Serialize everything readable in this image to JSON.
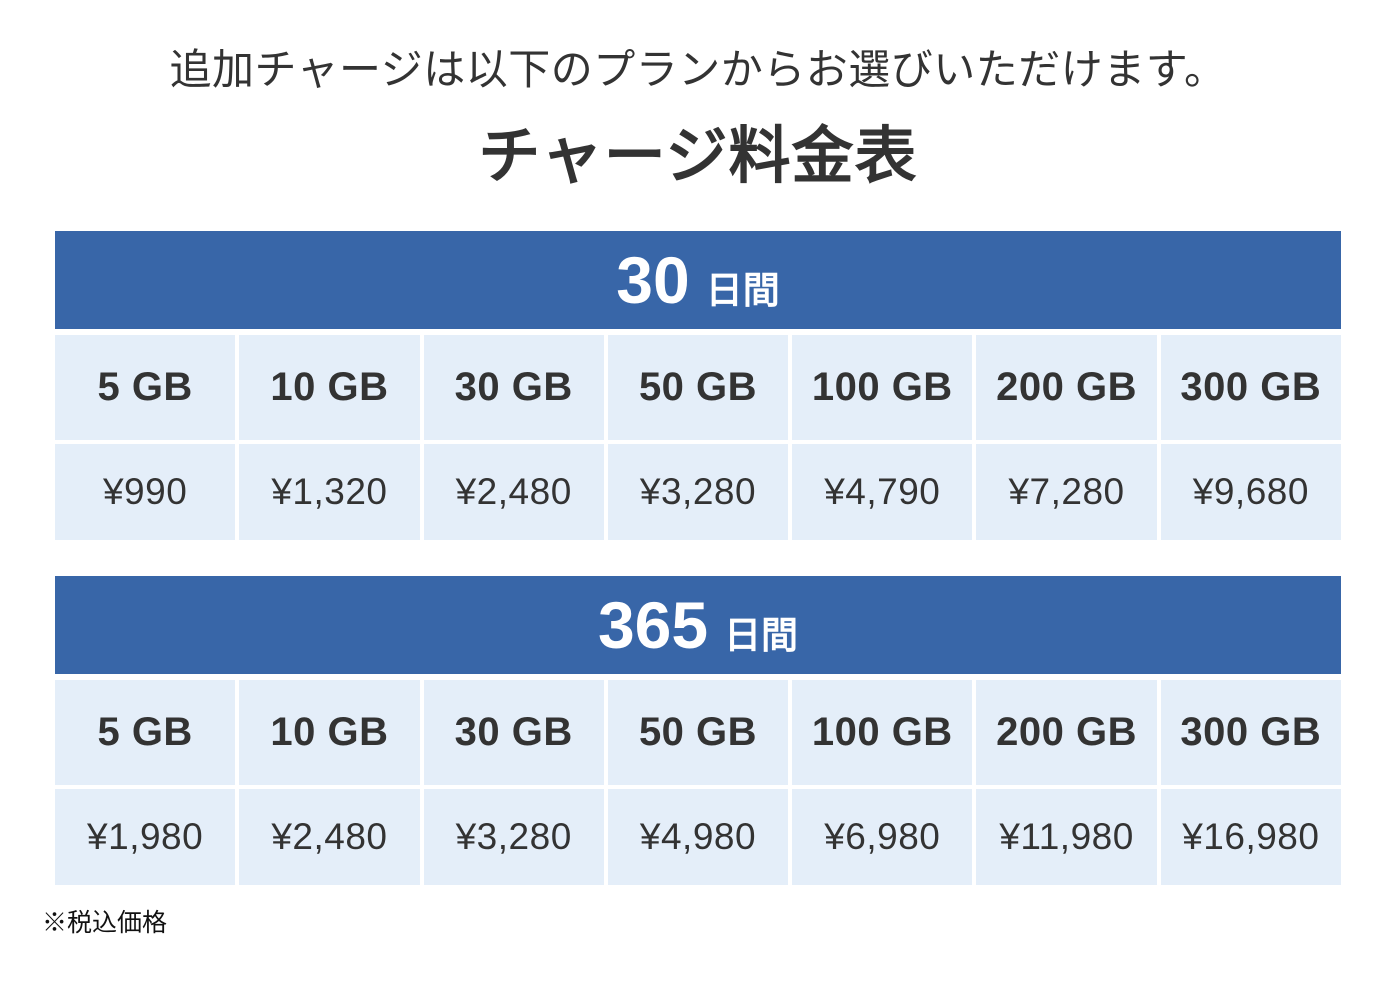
{
  "page": {
    "subtitle": "追加チャージは以下のプランからお選びいただけます。",
    "title": "チャージ料金表",
    "footnote": "※税込価格"
  },
  "colors": {
    "header_blue": "#3866A8",
    "cell_blue": "#E4EEF9",
    "text_dark": "#333333",
    "header_text": "#FFFFFF"
  },
  "chart_data": {
    "type": "table",
    "title": "チャージ料金表",
    "columns": [
      "5 GB",
      "10 GB",
      "30 GB",
      "50 GB",
      "100 GB",
      "200 GB",
      "300 GB"
    ],
    "tables": [
      {
        "period_number": "30",
        "period_unit": "日間",
        "capacities": [
          "5 GB",
          "10 GB",
          "30 GB",
          "50 GB",
          "100 GB",
          "200 GB",
          "300 GB"
        ],
        "prices": [
          "¥990",
          "¥1,320",
          "¥2,480",
          "¥3,280",
          "¥4,790",
          "¥7,280",
          "¥9,680"
        ],
        "prices_numeric_jpy": [
          990,
          1320,
          2480,
          3280,
          4790,
          7280,
          9680
        ]
      },
      {
        "period_number": "365",
        "period_unit": "日間",
        "capacities": [
          "5 GB",
          "10 GB",
          "30 GB",
          "50 GB",
          "100 GB",
          "200 GB",
          "300 GB"
        ],
        "prices": [
          "¥1,980",
          "¥2,480",
          "¥3,280",
          "¥4,980",
          "¥6,980",
          "¥11,980",
          "¥16,980"
        ],
        "prices_numeric_jpy": [
          1980,
          2480,
          3280,
          4980,
          6980,
          11980,
          16980
        ]
      }
    ],
    "footnote": "※税込価格"
  }
}
